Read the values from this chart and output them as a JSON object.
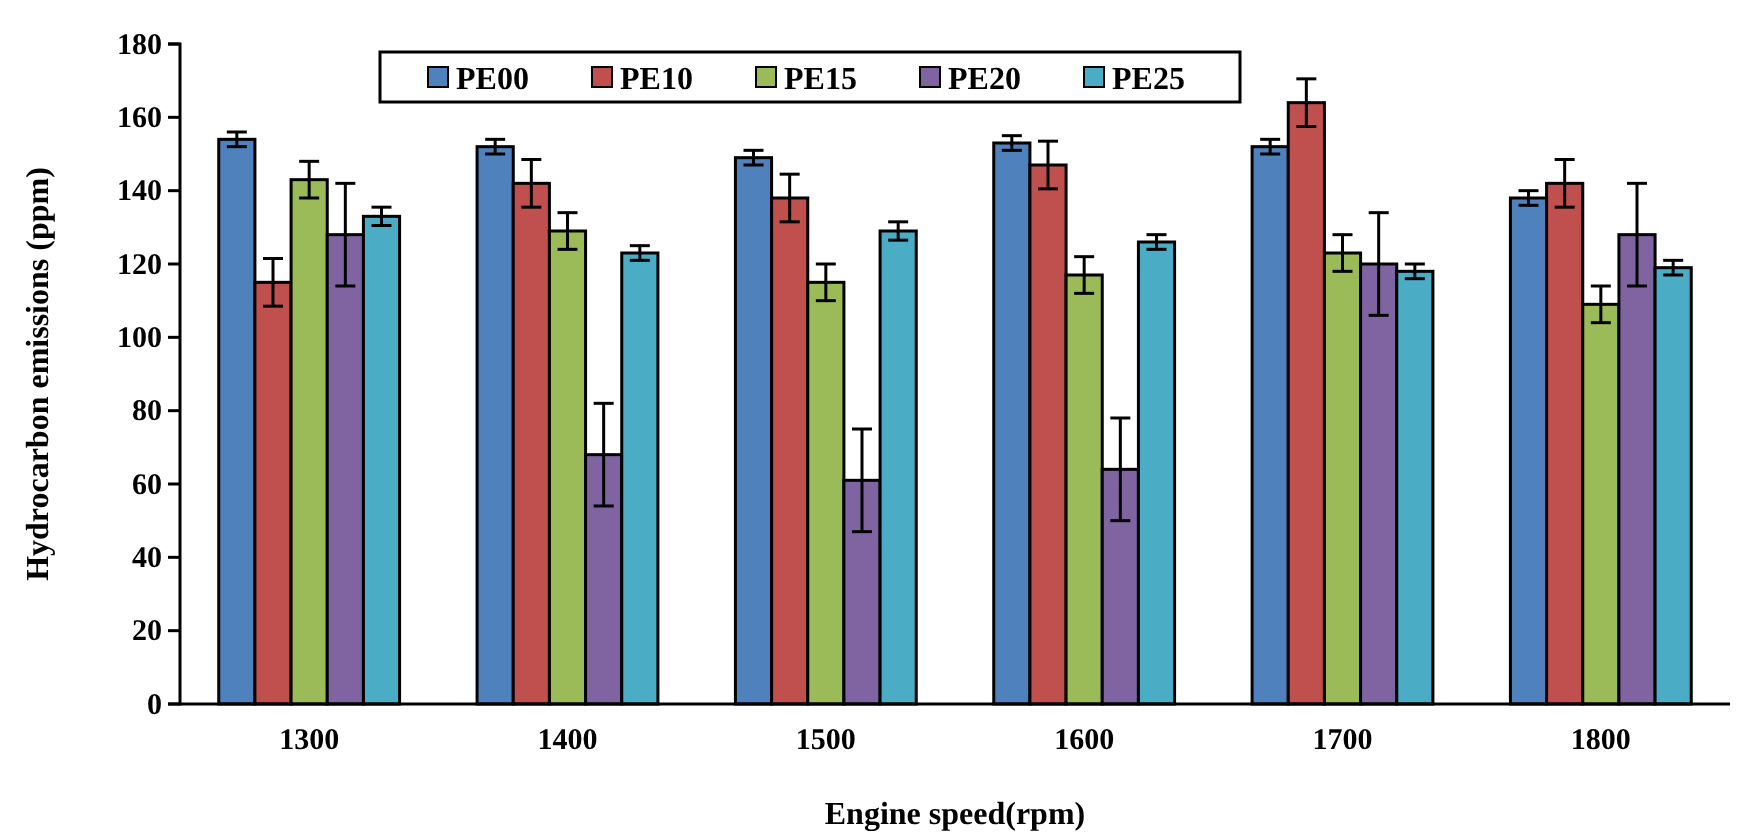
{
  "chart_data": {
    "type": "bar",
    "xlabel": "Engine speed(rpm)",
    "ylabel": "Hydrocarbon emissions (ppm)",
    "categories": [
      "1300",
      "1400",
      "1500",
      "1600",
      "1700",
      "1800"
    ],
    "series": [
      {
        "name": "PE00",
        "color": "#4f81bd",
        "values": [
          154,
          152,
          149,
          153,
          152,
          138
        ],
        "errors": [
          2,
          2,
          2,
          2,
          2,
          2
        ]
      },
      {
        "name": "PE10",
        "color": "#c0504d",
        "values": [
          115,
          142,
          138,
          147,
          164,
          142
        ],
        "errors": [
          6.5,
          6.5,
          6.5,
          6.5,
          6.5,
          6.5
        ]
      },
      {
        "name": "PE15",
        "color": "#9bbb59",
        "values": [
          143,
          129,
          115,
          117,
          123,
          109
        ],
        "errors": [
          5,
          5,
          5,
          5,
          5,
          5
        ]
      },
      {
        "name": "PE20",
        "color": "#8064a2",
        "values": [
          128,
          68,
          61,
          64,
          120,
          128
        ],
        "errors": [
          14,
          14,
          14,
          14,
          14,
          14
        ]
      },
      {
        "name": "PE25",
        "color": "#4bacc6",
        "values": [
          133,
          123,
          129,
          126,
          118,
          119
        ],
        "errors": [
          2.5,
          2,
          2.5,
          2,
          2,
          2
        ]
      }
    ],
    "ylim": [
      0,
      180
    ],
    "yticks": [
      0,
      20,
      40,
      60,
      80,
      100,
      120,
      140,
      160,
      180
    ],
    "grid": false,
    "legend": "top"
  }
}
